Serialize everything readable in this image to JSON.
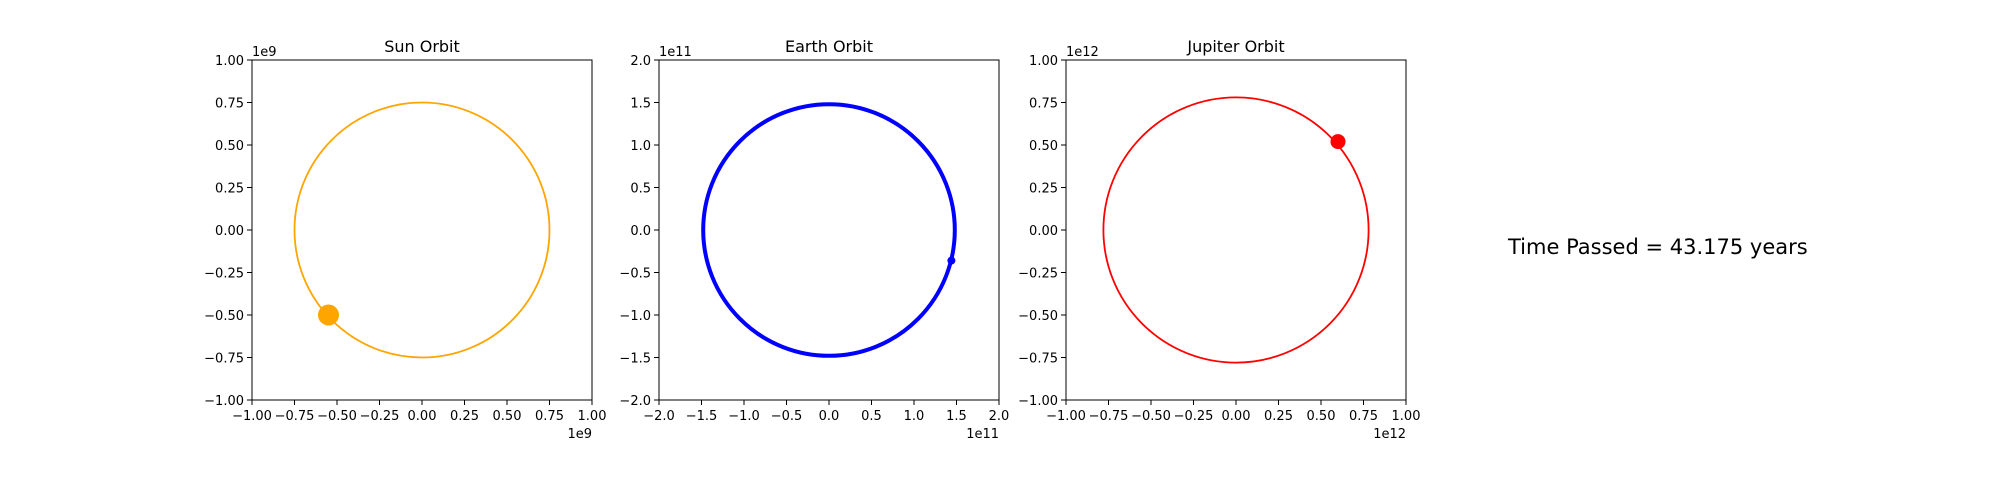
{
  "chart_data": [
    {
      "type": "scatter",
      "title": "Sun Orbit",
      "xlim": [
        -1.0,
        1.0
      ],
      "ylim": [
        -1.0,
        1.0
      ],
      "xticks": [
        "−1.00",
        "−0.75",
        "−0.50",
        "−0.25",
        "0.00",
        "0.25",
        "0.50",
        "0.75",
        "1.00"
      ],
      "yticks": [
        "−1.00",
        "−0.75",
        "−0.50",
        "−0.25",
        "0.00",
        "0.25",
        "0.50",
        "0.75",
        "1.00"
      ],
      "x_offset": "1e9",
      "y_offset": "1e9",
      "grid": false,
      "series": [
        {
          "orbit": {
            "center": [
              0.0,
              0.0
            ],
            "rx": 0.75,
            "ry": 0.75
          },
          "color": "#ffa500",
          "marker": {
            "x": -0.55,
            "y": -0.5
          }
        }
      ]
    },
    {
      "type": "scatter",
      "title": "Earth Orbit",
      "xlim": [
        -2.0,
        2.0
      ],
      "ylim": [
        -2.0,
        2.0
      ],
      "xticks": [
        "−2.0",
        "−1.5",
        "−1.0",
        "−0.5",
        "0.0",
        "0.5",
        "1.0",
        "1.5",
        "2.0"
      ],
      "yticks": [
        "−2.0",
        "−1.5",
        "−1.0",
        "−0.5",
        "0.0",
        "0.5",
        "1.0",
        "1.5",
        "2.0"
      ],
      "x_offset": "1e11",
      "y_offset": "1e11",
      "grid": false,
      "series": [
        {
          "orbit": {
            "center": [
              0.0,
              0.0
            ],
            "rx": 1.48,
            "ry": 1.48
          },
          "color": "#0000ff",
          "marker": {
            "x": 1.44,
            "y": -0.36
          }
        }
      ]
    },
    {
      "type": "scatter",
      "title": "Jupiter Orbit",
      "xlim": [
        -1.0,
        1.0
      ],
      "ylim": [
        -1.0,
        1.0
      ],
      "xticks": [
        "−1.00",
        "−0.75",
        "−0.50",
        "−0.25",
        "0.00",
        "0.25",
        "0.50",
        "0.75",
        "1.00"
      ],
      "yticks": [
        "−1.00",
        "−0.75",
        "−0.50",
        "−0.25",
        "0.00",
        "0.25",
        "0.50",
        "0.75",
        "1.00"
      ],
      "x_offset": "1e12",
      "y_offset": "1e12",
      "grid": false,
      "series": [
        {
          "orbit": {
            "center": [
              0.0,
              0.0
            ],
            "rx": 0.78,
            "ry": 0.78
          },
          "color": "#ff0000",
          "marker": {
            "x": 0.6,
            "y": 0.52
          }
        }
      ]
    }
  ],
  "time_text": "Time Passed = 43.175 years"
}
